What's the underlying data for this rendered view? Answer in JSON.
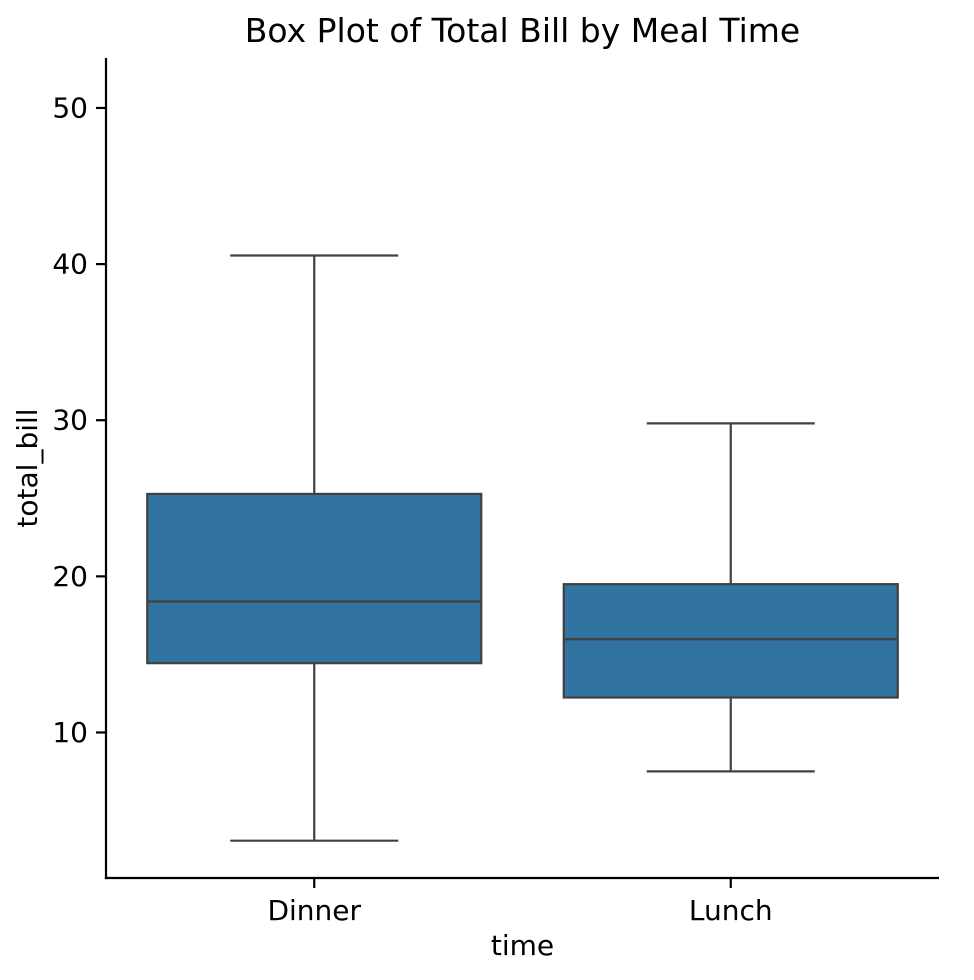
{
  "title": "Box Plot of Total Bill by Meal Time",
  "chart_data": {
    "type": "box",
    "title": "Box Plot of Total Bill by Meal Time",
    "xlabel": "time",
    "ylabel": "total_bill",
    "categories": [
      "Dinner",
      "Lunch"
    ],
    "ylim": [
      0.68,
      53.2
    ],
    "yticks": [
      10,
      20,
      30,
      40,
      50
    ],
    "grid": false,
    "legend": "none",
    "series": [
      {
        "name": "Dinner",
        "whisker_low": 3.07,
        "q1": 14.44,
        "median": 18.39,
        "q3": 25.28,
        "whisker_high": 40.55,
        "outliers": []
      },
      {
        "name": "Lunch",
        "whisker_low": 7.51,
        "q1": 12.24,
        "median": 15.97,
        "q3": 19.5,
        "whisker_high": 29.8,
        "outliers": []
      }
    ],
    "colors": {
      "box_fill": "#3274a1",
      "box_edge": "#404040",
      "axis": "#000000",
      "background": "#ffffff"
    }
  }
}
